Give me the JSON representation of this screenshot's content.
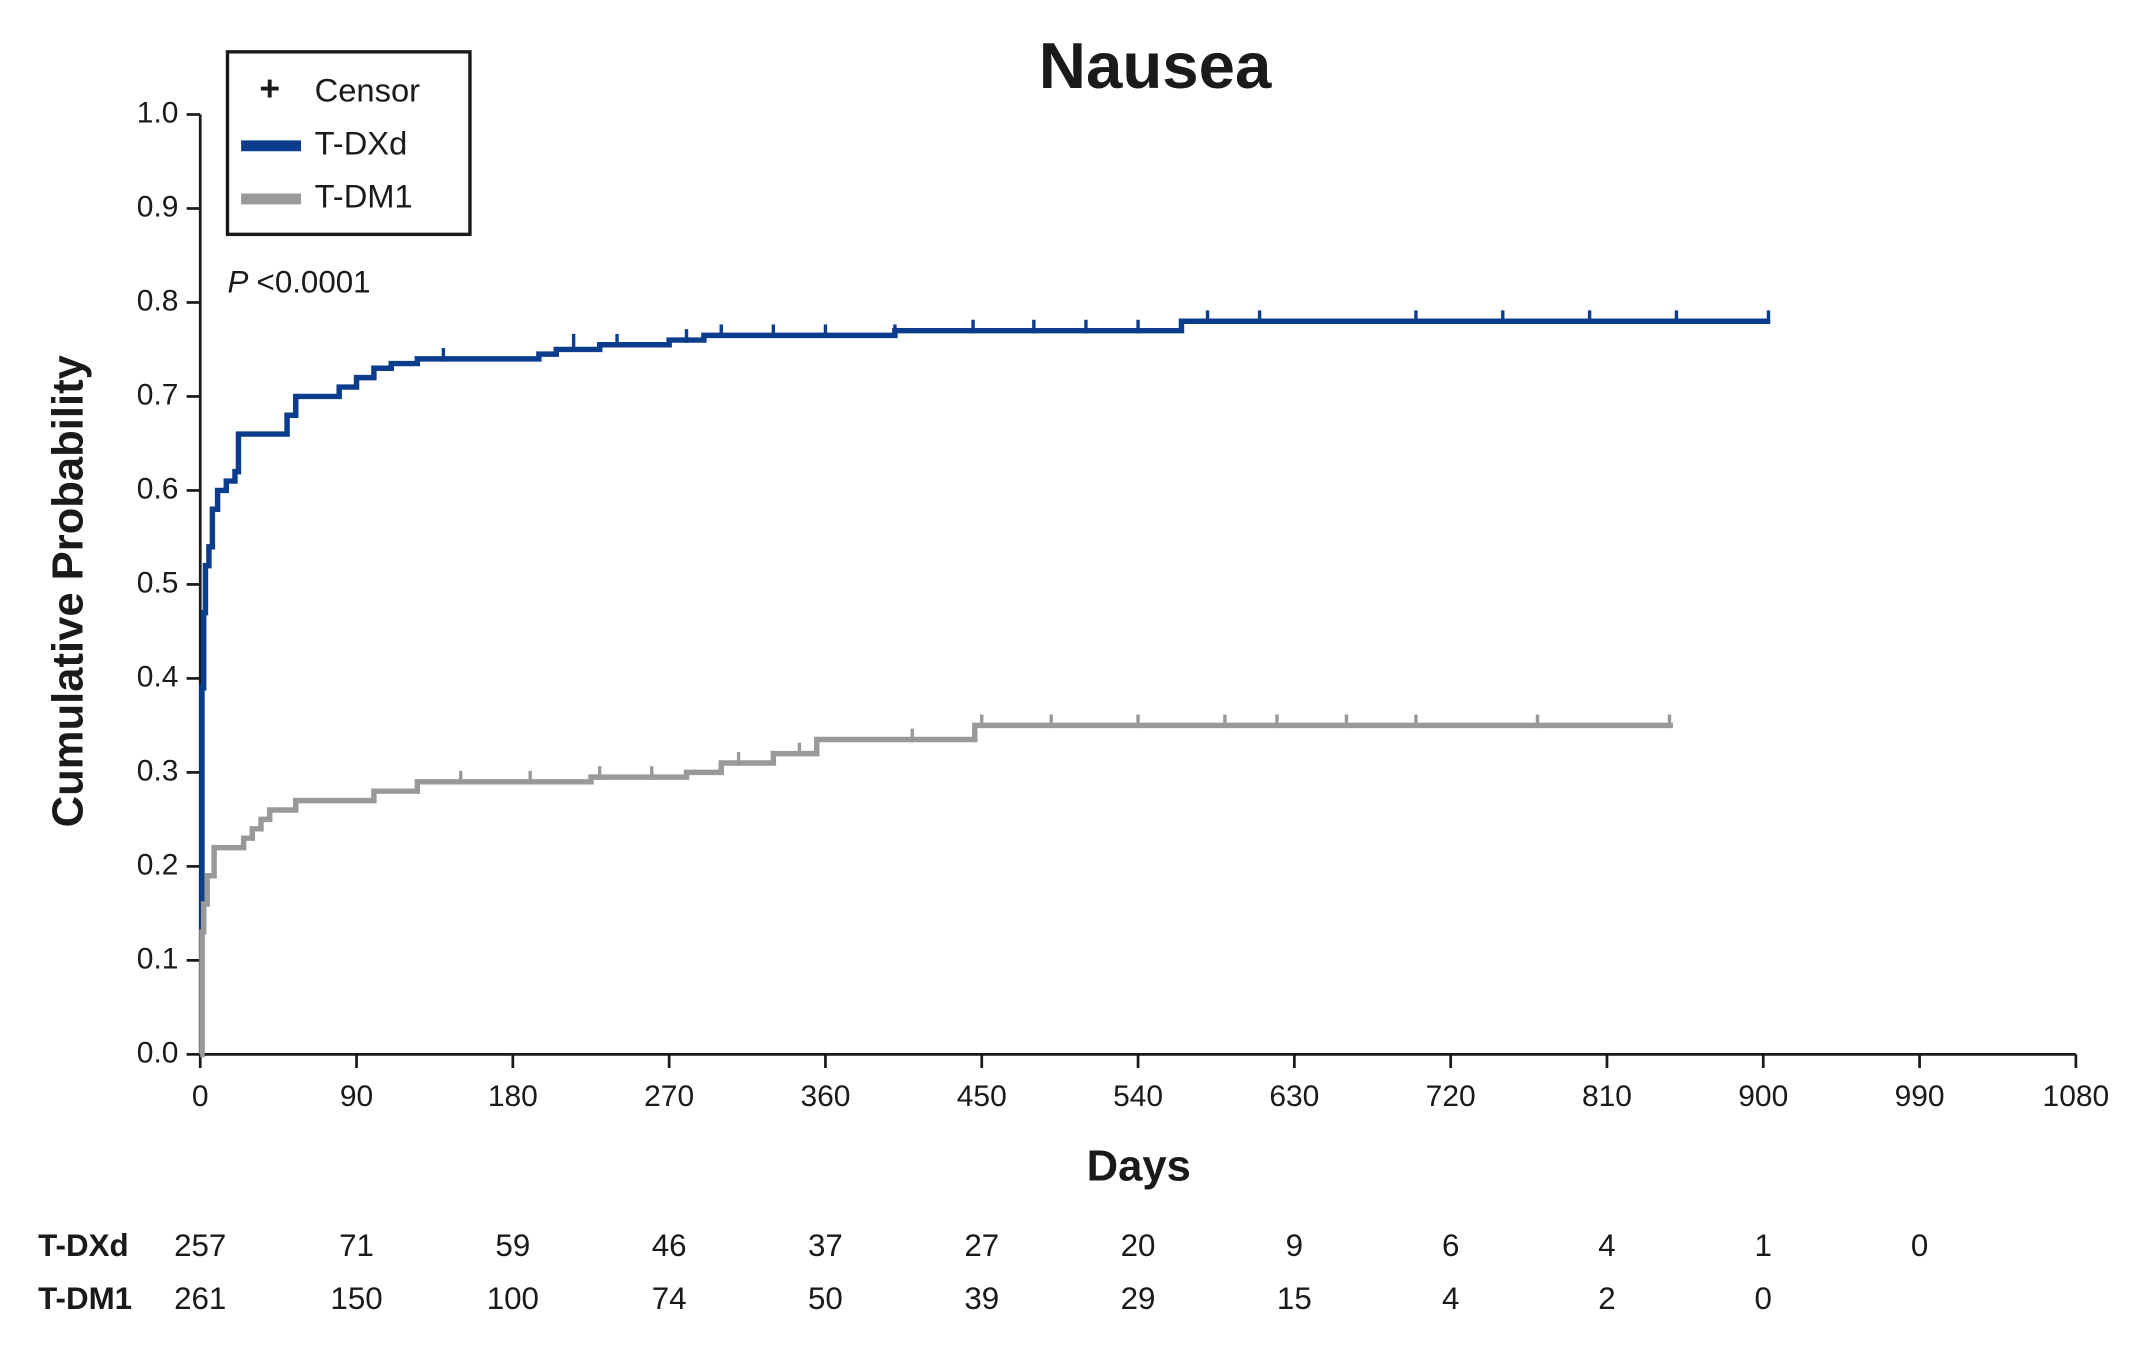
{
  "chart_data": {
    "type": "step",
    "title": "Nausea",
    "x_label": "Days",
    "y_label": "Cumulative Probability",
    "annotation": {
      "italic": "P",
      "text": "<0.0001"
    },
    "legend": {
      "censor": "Censor",
      "corner": "upper-left"
    },
    "xlim": [
      0,
      1080
    ],
    "xticks": [
      0,
      90,
      180,
      270,
      360,
      450,
      540,
      630,
      720,
      810,
      900,
      990,
      1080
    ],
    "ylim": [
      0,
      1
    ],
    "yticks": [
      {
        "value": 0,
        "label": "0.0"
      },
      {
        "value": 0.1,
        "label": "0.1"
      },
      {
        "value": 0.2,
        "label": "0.2"
      },
      {
        "value": 0.3,
        "label": "0.3"
      },
      {
        "value": 0.4,
        "label": "0.4"
      },
      {
        "value": 0.5,
        "label": "0.5"
      },
      {
        "value": 0.6,
        "label": "0.6"
      },
      {
        "value": 0.7,
        "label": "0.7"
      },
      {
        "value": 0.8,
        "label": "0.8"
      },
      {
        "value": 0.9,
        "label": "0.9"
      },
      {
        "value": 1,
        "label": "1.0"
      }
    ],
    "series": [
      {
        "name": "T-DXd",
        "color": "#0b3d8c",
        "x": [
          0,
          1,
          2,
          3,
          5,
          7,
          10,
          15,
          20,
          22,
          45,
          50,
          55,
          70,
          80,
          90,
          100,
          110,
          125,
          195,
          205,
          230,
          270,
          290,
          400,
          565,
          904
        ],
        "values": [
          0,
          0.39,
          0.47,
          0.52,
          0.54,
          0.58,
          0.6,
          0.61,
          0.62,
          0.66,
          0.66,
          0.68,
          0.7,
          0.7,
          0.71,
          0.72,
          0.73,
          0.735,
          0.74,
          0.745,
          0.75,
          0.755,
          0.76,
          0.765,
          0.77,
          0.78,
          0.78
        ],
        "censor_x": [
          140,
          215,
          240,
          280,
          300,
          330,
          360,
          400,
          445,
          480,
          510,
          540,
          580,
          610,
          700,
          750,
          800,
          850,
          903
        ],
        "censor_y": [
          0.74,
          0.755,
          0.755,
          0.76,
          0.765,
          0.765,
          0.765,
          0.765,
          0.77,
          0.77,
          0.77,
          0.77,
          0.78,
          0.78,
          0.78,
          0.78,
          0.78,
          0.78,
          0.78
        ]
      },
      {
        "name": "T-DM1",
        "color": "#999999",
        "x": [
          0,
          1,
          2,
          4,
          8,
          25,
          30,
          35,
          40,
          55,
          90,
          100,
          125,
          200,
          225,
          280,
          300,
          330,
          355,
          446,
          848
        ],
        "values": [
          0,
          0.13,
          0.16,
          0.19,
          0.22,
          0.23,
          0.24,
          0.25,
          0.26,
          0.27,
          0.27,
          0.28,
          0.29,
          0.29,
          0.295,
          0.3,
          0.31,
          0.32,
          0.335,
          0.35,
          0.35
        ],
        "censor_x": [
          150,
          190,
          230,
          260,
          310,
          345,
          410,
          450,
          490,
          540,
          590,
          620,
          660,
          700,
          770,
          846
        ],
        "censor_y": [
          0.29,
          0.29,
          0.295,
          0.295,
          0.31,
          0.32,
          0.335,
          0.35,
          0.35,
          0.35,
          0.35,
          0.35,
          0.35,
          0.35,
          0.35,
          0.35
        ]
      }
    ],
    "risk_table": {
      "rows": [
        {
          "name": "T-DXd",
          "values": [
            257,
            71,
            59,
            46,
            37,
            27,
            20,
            9,
            6,
            4,
            1,
            0
          ]
        },
        {
          "name": "T-DM1",
          "values": [
            261,
            150,
            100,
            74,
            50,
            39,
            29,
            15,
            4,
            2,
            0
          ]
        }
      ]
    }
  }
}
